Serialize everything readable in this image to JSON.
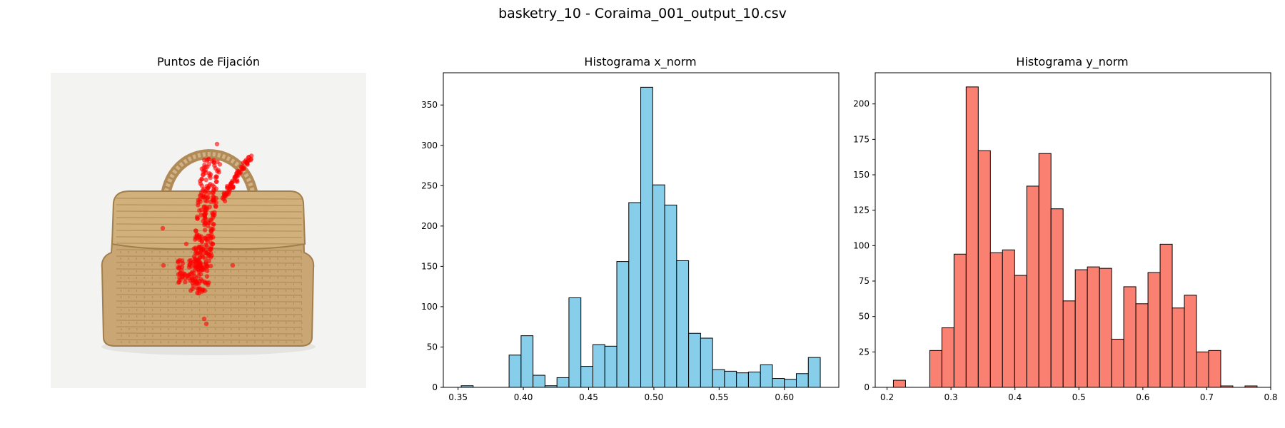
{
  "suptitle": "basketry_10 - Coraima_001_output_10.csv",
  "chart_data": [
    {
      "type": "scatter",
      "title": "Puntos de Fijación",
      "axes": "off",
      "background": "photo of woven basket bag",
      "point_color": "#ff0000"
    },
    {
      "type": "bar",
      "subtype": "histogram",
      "title": "Histograma x_norm",
      "color": "#87ceeb",
      "edgecolor": "#000000",
      "bin_start": 0.3524,
      "bin_width": 0.00917,
      "counts": [
        2,
        0,
        0,
        0,
        40,
        64,
        15,
        2,
        12,
        111,
        26,
        53,
        51,
        156,
        229,
        372,
        251,
        226,
        157,
        67,
        61,
        22,
        20,
        18,
        19,
        28,
        11,
        10,
        17,
        37
      ],
      "xlim": [
        0.3387,
        0.6417
      ],
      "ylim": [
        0,
        390
      ],
      "xticks": [
        "0.35",
        "0.40",
        "0.45",
        "0.50",
        "0.55",
        "0.60"
      ],
      "xtick_values": [
        0.35,
        0.4,
        0.45,
        0.5,
        0.55,
        0.6
      ],
      "yticks": [
        "0",
        "50",
        "100",
        "150",
        "200",
        "250",
        "300",
        "350"
      ],
      "ytick_values": [
        0,
        50,
        100,
        150,
        200,
        250,
        300,
        350
      ]
    },
    {
      "type": "bar",
      "subtype": "histogram",
      "title": "Histograma y_norm",
      "color": "#fa8072",
      "edgecolor": "#000000",
      "bin_start": 0.2099,
      "bin_width": 0.01896,
      "counts": [
        5,
        0,
        0,
        26,
        42,
        94,
        212,
        167,
        95,
        97,
        79,
        142,
        165,
        126,
        61,
        83,
        85,
        84,
        34,
        71,
        59,
        81,
        101,
        56,
        65,
        25,
        26,
        1,
        0,
        1
      ],
      "xlim": [
        0.1815,
        0.8
      ],
      "ylim": [
        0,
        222
      ],
      "xticks": [
        "0.2",
        "0.3",
        "0.4",
        "0.5",
        "0.6",
        "0.7",
        "0.8"
      ],
      "xtick_values": [
        0.2,
        0.3,
        0.4,
        0.5,
        0.6,
        0.7,
        0.8
      ],
      "yticks": [
        "0",
        "25",
        "50",
        "75",
        "100",
        "125",
        "150",
        "175",
        "200"
      ],
      "ytick_values": [
        0,
        25,
        50,
        75,
        100,
        125,
        150,
        175,
        200
      ]
    }
  ]
}
